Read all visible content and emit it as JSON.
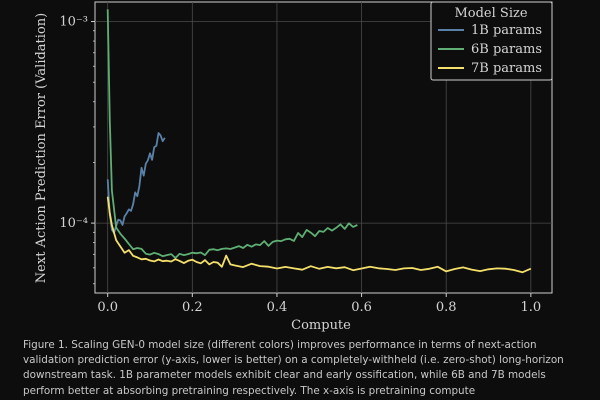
{
  "chart_data": {
    "type": "line",
    "xlabel": "Compute",
    "ylabel": "Next Action Prediction Error (Validation)",
    "xlim": [
      -0.03,
      1.05
    ],
    "ylim": [
      4.5e-05,
      0.00125
    ],
    "y_scale": "log",
    "grid": true,
    "x_ticks": [
      0.0,
      0.2,
      0.4,
      0.6,
      0.8,
      1.0
    ],
    "x_tick_labels": [
      "0.0",
      "0.2",
      "0.4",
      "0.6",
      "0.8",
      "1.0"
    ],
    "y_ticks": [
      0.001,
      0.0001
    ],
    "y_tick_labels": [
      "10⁻³",
      "10⁻⁴"
    ],
    "legend": {
      "title": "Model Size",
      "placement": "top-right"
    },
    "series": [
      {
        "name": "1B params",
        "color": "#5b80a8",
        "x": [
          0.0,
          0.005,
          0.01,
          0.015,
          0.02,
          0.025,
          0.03,
          0.035,
          0.04,
          0.045,
          0.05,
          0.055,
          0.06,
          0.065,
          0.07,
          0.075,
          0.08,
          0.085,
          0.09,
          0.095,
          0.1,
          0.105,
          0.11,
          0.115,
          0.12,
          0.125,
          0.13,
          0.135
        ],
        "y": [
          0.000165,
          0.00011,
          9.25e-05,
          8.95e-05,
          9.7e-05,
          0.000104,
          0.000103,
          9.8e-05,
          0.000108,
          0.000112,
          0.000117,
          0.000115,
          0.000124,
          0.000142,
          0.000136,
          0.000153,
          0.000188,
          0.000172,
          0.000197,
          0.000205,
          0.000222,
          0.000206,
          0.000238,
          0.000242,
          0.00028,
          0.000272,
          0.000255,
          0.000265
        ]
      },
      {
        "name": "6B params",
        "color": "#5fae74",
        "x": [
          0.0,
          0.005,
          0.01,
          0.02,
          0.03,
          0.04,
          0.05,
          0.06,
          0.07,
          0.08,
          0.09,
          0.1,
          0.11,
          0.12,
          0.13,
          0.14,
          0.15,
          0.16,
          0.17,
          0.18,
          0.19,
          0.2,
          0.21,
          0.22,
          0.23,
          0.24,
          0.25,
          0.26,
          0.27,
          0.28,
          0.29,
          0.3,
          0.31,
          0.32,
          0.33,
          0.34,
          0.35,
          0.36,
          0.37,
          0.38,
          0.39,
          0.4,
          0.41,
          0.42,
          0.43,
          0.44,
          0.45,
          0.46,
          0.47,
          0.48,
          0.49,
          0.5,
          0.51,
          0.52,
          0.53,
          0.54,
          0.55,
          0.56,
          0.57,
          0.58,
          0.59
        ],
        "y": [
          0.00115,
          0.00032,
          0.000145,
          9.5e-05,
          8.85e-05,
          8.38e-05,
          7.88e-05,
          7.42e-05,
          7.52e-05,
          7.45e-05,
          7.05e-05,
          6.98e-05,
          7.12e-05,
          7.02e-05,
          6.85e-05,
          6.94e-05,
          7.02e-05,
          6.71e-05,
          7.04e-05,
          6.94e-05,
          7.02e-05,
          7.13e-05,
          7.08e-05,
          7.15e-05,
          6.94e-05,
          7.37e-05,
          7.42e-05,
          7.34e-05,
          7.45e-05,
          7.49e-05,
          7.44e-05,
          7.56e-05,
          7.69e-05,
          7.52e-05,
          7.8e-05,
          7.64e-05,
          7.84e-05,
          7.78e-05,
          8.14e-05,
          7.71e-05,
          8.07e-05,
          8.19e-05,
          8.14e-05,
          8.31e-05,
          8.36e-05,
          8.16e-05,
          8.93e-05,
          8.52e-05,
          9.25e-05,
          8.97e-05,
          8.61e-05,
          9.14e-05,
          9.04e-05,
          9.46e-05,
          9.18e-05,
          9.48e-05,
          9.85e-05,
          9.36e-05,
          9.98e-05,
          9.58e-05,
          9.78e-05
        ]
      },
      {
        "name": "7B params",
        "color": "#f3df6a",
        "x": [
          0.0,
          0.005,
          0.01,
          0.02,
          0.03,
          0.04,
          0.05,
          0.06,
          0.07,
          0.08,
          0.09,
          0.1,
          0.11,
          0.12,
          0.13,
          0.14,
          0.15,
          0.16,
          0.17,
          0.18,
          0.19,
          0.2,
          0.21,
          0.22,
          0.23,
          0.24,
          0.25,
          0.26,
          0.27,
          0.28,
          0.29,
          0.3,
          0.32,
          0.34,
          0.36,
          0.38,
          0.4,
          0.42,
          0.44,
          0.46,
          0.48,
          0.5,
          0.52,
          0.54,
          0.56,
          0.58,
          0.6,
          0.62,
          0.64,
          0.66,
          0.68,
          0.7,
          0.72,
          0.74,
          0.76,
          0.78,
          0.8,
          0.82,
          0.84,
          0.86,
          0.88,
          0.9,
          0.92,
          0.94,
          0.96,
          0.98,
          1.0
        ],
        "y": [
          0.000135,
          0.000112,
          9.75e-05,
          8.23e-05,
          7.65e-05,
          7.12e-05,
          7.35e-05,
          6.88e-05,
          6.76e-05,
          6.61e-05,
          6.65e-05,
          6.52e-05,
          6.46e-05,
          6.6e-05,
          6.47e-05,
          6.51e-05,
          6.45e-05,
          6.62e-05,
          6.49e-05,
          6.33e-05,
          6.5e-05,
          6.58e-05,
          6.41e-05,
          6.32e-05,
          6.55e-05,
          6.24e-05,
          6.41e-05,
          6.36e-05,
          6.07e-05,
          6.9e-05,
          6.24e-05,
          6.17e-05,
          6.05e-05,
          6.29e-05,
          6.12e-05,
          6.08e-05,
          5.95e-05,
          6.06e-05,
          5.96e-05,
          5.87e-05,
          6.11e-05,
          5.93e-05,
          6.06e-05,
          5.97e-05,
          6.04e-05,
          5.84e-05,
          5.95e-05,
          6.07e-05,
          5.97e-05,
          5.92e-05,
          5.85e-05,
          5.96e-05,
          5.99e-05,
          5.85e-05,
          5.93e-05,
          6.07e-05,
          5.76e-05,
          5.92e-05,
          6.03e-05,
          5.88e-05,
          5.78e-05,
          5.9e-05,
          5.96e-05,
          5.94e-05,
          5.85e-05,
          5.7e-05,
          5.94e-05
        ]
      }
    ]
  },
  "caption": "Figure 1. Scaling GEN-0 model size (different colors) improves performance in terms of next-action validation prediction error (y-axis, lower is better) on a completely-withheld (i.e. zero-shot) long-horizon downstream task. 1B parameter models exhibit clear and early ossification, while 6B and 7B models perform better at absorbing pretraining respectively. The x-axis is pretraining compute"
}
